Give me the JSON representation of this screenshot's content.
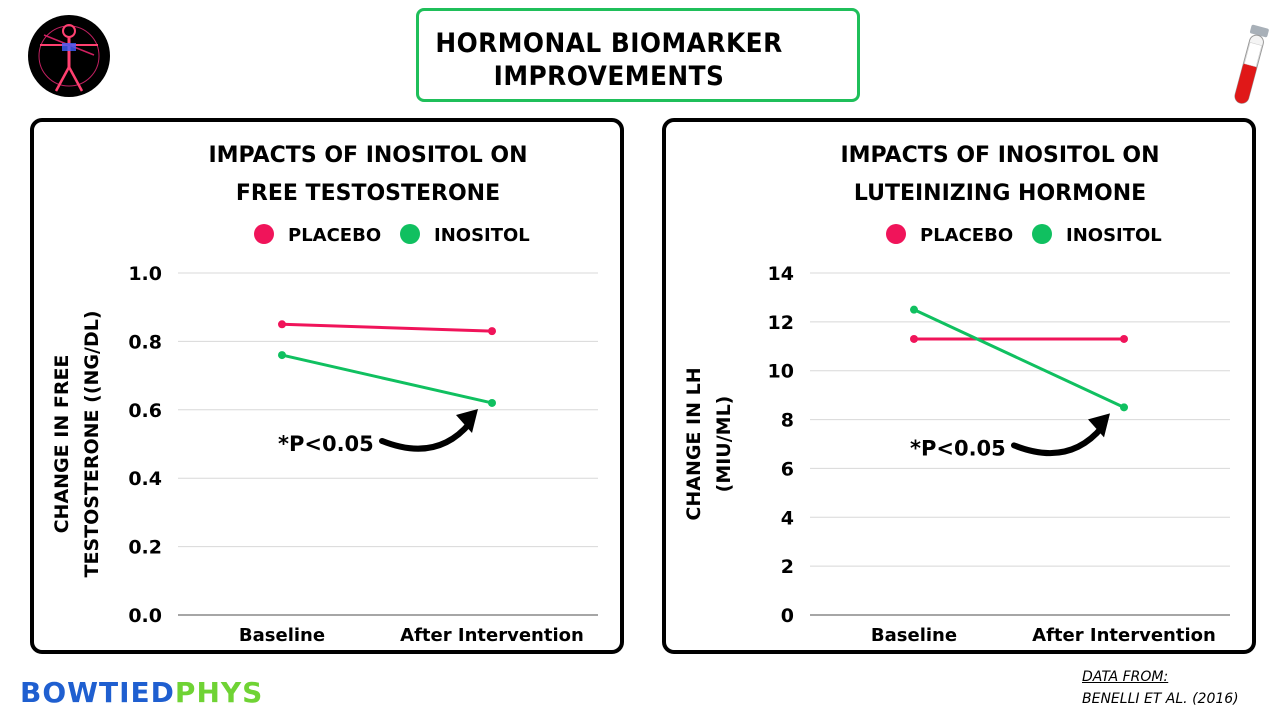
{
  "header": {
    "title_line1": "HORMONAL BIOMARKER",
    "title_line2": "IMPROVEMENTS"
  },
  "footer": {
    "brand_part1": "BOWTIED",
    "brand_part2": "PHYS",
    "source_label": "DATA FROM:",
    "source_citation": "BENELLI ET AL. (2016)"
  },
  "colors": {
    "placebo": "#f0145a",
    "inositol": "#10c060",
    "accent": "#1fbf5a",
    "brand_blue": "#1f5fd0",
    "brand_green": "#6fd334"
  },
  "chart_data": [
    {
      "type": "line",
      "title": [
        "IMPACTS OF INOSITOL ON",
        "FREE TESTOSTERONE"
      ],
      "categories": [
        "Baseline",
        "After Intervention"
      ],
      "series": [
        {
          "name": "Placebo",
          "values": [
            0.85,
            0.83
          ]
        },
        {
          "name": "Inositol",
          "values": [
            0.76,
            0.62
          ]
        }
      ],
      "ylabel": [
        "CHANGE IN FREE",
        "TESTOSTERONE ((NG/DL)"
      ],
      "xlabel": "",
      "ylim": [
        0,
        1.0
      ],
      "yticks": [
        "0.0",
        "0.2",
        "0.4",
        "0.6",
        "0.8",
        "1.0"
      ],
      "annotation": "*P<0.05",
      "grid": true,
      "legend": "top-center"
    },
    {
      "type": "line",
      "title": [
        "IMPACTS OF INOSITOL ON",
        "LUTEINIZING HORMONE"
      ],
      "categories": [
        "Baseline",
        "After Intervention"
      ],
      "series": [
        {
          "name": "Placebo",
          "values": [
            11.3,
            11.3
          ]
        },
        {
          "name": "Inositol",
          "values": [
            12.5,
            8.5
          ]
        }
      ],
      "ylabel": [
        "CHANGE IN LH",
        "(MIU/ML)"
      ],
      "xlabel": "",
      "ylim": [
        0,
        14
      ],
      "yticks": [
        "0",
        "2",
        "4",
        "6",
        "8",
        "10",
        "12",
        "14"
      ],
      "annotation": "*P<0.05",
      "grid": true,
      "legend": "top-center"
    }
  ]
}
